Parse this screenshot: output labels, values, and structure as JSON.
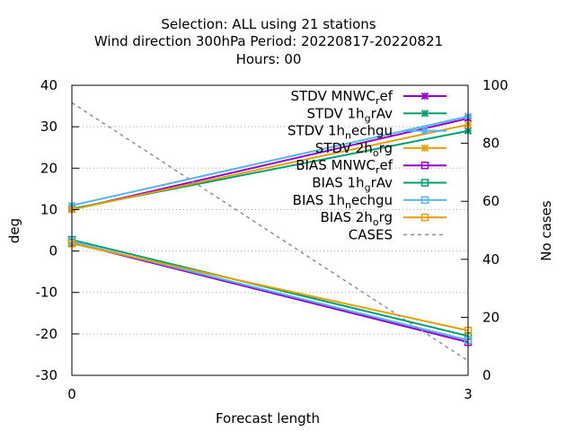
{
  "chart_data": {
    "type": "line",
    "title_lines": [
      "Selection: ALL using    21 stations",
      "Wind direction 300hPa   Period: 20220817-20220821",
      "Hours:  00"
    ],
    "xlabel": "Forecast length",
    "ylabel": "deg",
    "y2label": "No cases",
    "x": [
      0,
      3
    ],
    "xlim": [
      0,
      3
    ],
    "xticks": [
      "0",
      "3"
    ],
    "ylim": [
      -30,
      40
    ],
    "yticks": [
      "-30",
      "-20",
      "-10",
      "0",
      "10",
      "20",
      "30",
      "40"
    ],
    "y2lim": [
      0,
      100
    ],
    "y2ticks": [
      "0",
      "20",
      "40",
      "60",
      "80",
      "100"
    ],
    "grid": true,
    "legend_position": "top-right",
    "series": [
      {
        "name": "STDV MNWC_ref",
        "legend": [
          "STDV MNWC",
          "r",
          "ef"
        ],
        "values": [
          10.0,
          32.0
        ],
        "color": "#9400d3",
        "marker": "x",
        "axis": "y1",
        "dash": false
      },
      {
        "name": "STDV 1h_grAv",
        "legend": [
          "STDV 1h",
          "g",
          "rAv"
        ],
        "values": [
          10.2,
          29.0
        ],
        "color": "#009e73",
        "marker": "x",
        "axis": "y1",
        "dash": false
      },
      {
        "name": "STDV 1h_nechgu",
        "legend": [
          "STDV 1h",
          "n",
          "echgu"
        ],
        "values": [
          11.0,
          32.5
        ],
        "color": "#56b4e9",
        "marker": "x",
        "axis": "y1",
        "dash": false
      },
      {
        "name": "STDV 2h_org",
        "legend": [
          "STDV 2h",
          "o",
          "rg"
        ],
        "values": [
          10.0,
          30.5
        ],
        "color": "#e69f00",
        "marker": "x",
        "axis": "y1",
        "dash": false
      },
      {
        "name": "BIAS MNWC_ref",
        "legend": [
          "BIAS MNWC",
          "r",
          "ef"
        ],
        "values": [
          2.0,
          -22.0
        ],
        "color": "#9400d3",
        "marker": "square",
        "axis": "y1",
        "dash": false
      },
      {
        "name": "BIAS 1h_grAv",
        "legend": [
          "BIAS 1h",
          "g",
          "rAv"
        ],
        "values": [
          2.7,
          -20.5
        ],
        "color": "#009e73",
        "marker": "square",
        "axis": "y1",
        "dash": false
      },
      {
        "name": "BIAS 1h_nechgu",
        "legend": [
          "BIAS 1h",
          "n",
          "echgu"
        ],
        "values": [
          2.2,
          -21.5
        ],
        "color": "#56b4e9",
        "marker": "square",
        "axis": "y1",
        "dash": false
      },
      {
        "name": "BIAS 2h_org",
        "legend": [
          "BIAS 2h",
          "o",
          "rg"
        ],
        "values": [
          1.8,
          -19.2
        ],
        "color": "#e69f00",
        "marker": "square",
        "axis": "y1",
        "dash": false
      },
      {
        "name": "CASES",
        "legend": [
          "CASES",
          "",
          ""
        ],
        "values": [
          94,
          5
        ],
        "color": "#909090",
        "marker": "none",
        "axis": "y2",
        "dash": true
      }
    ]
  }
}
